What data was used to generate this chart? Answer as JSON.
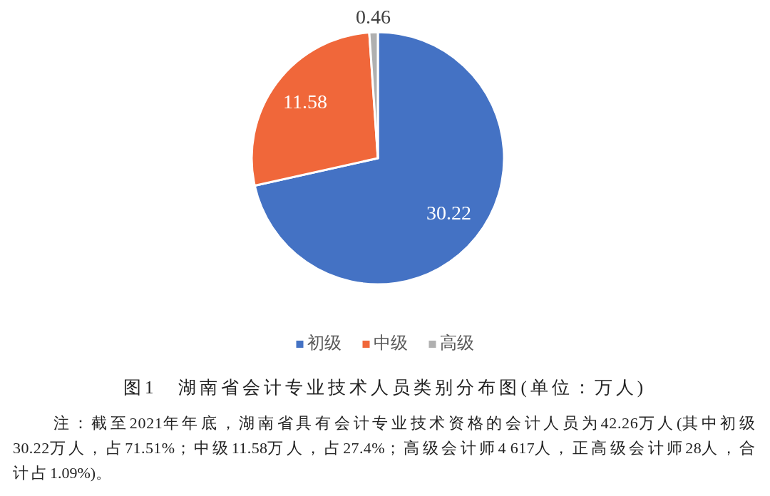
{
  "chart_data": {
    "type": "pie",
    "title": "图1　湖南省会计专业技术人员类别分布图(单位：万人)",
    "categories": [
      "初级",
      "中级",
      "高级"
    ],
    "values": [
      30.22,
      11.58,
      0.46
    ],
    "colors": [
      "#4472c4",
      "#f0673a",
      "#b0b0b0"
    ],
    "data_labels": true,
    "legend": "bottom",
    "annotations": [
      "注：截至2021年年底，湖南省具有会计专业技术资格的会计人员为42.26万人(其中初级30.22万人，占71.51%；中级11.58万人，占27.4%；高级会计师4 617人，正高级会计师28人，合计占1.09%)。"
    ]
  }
}
